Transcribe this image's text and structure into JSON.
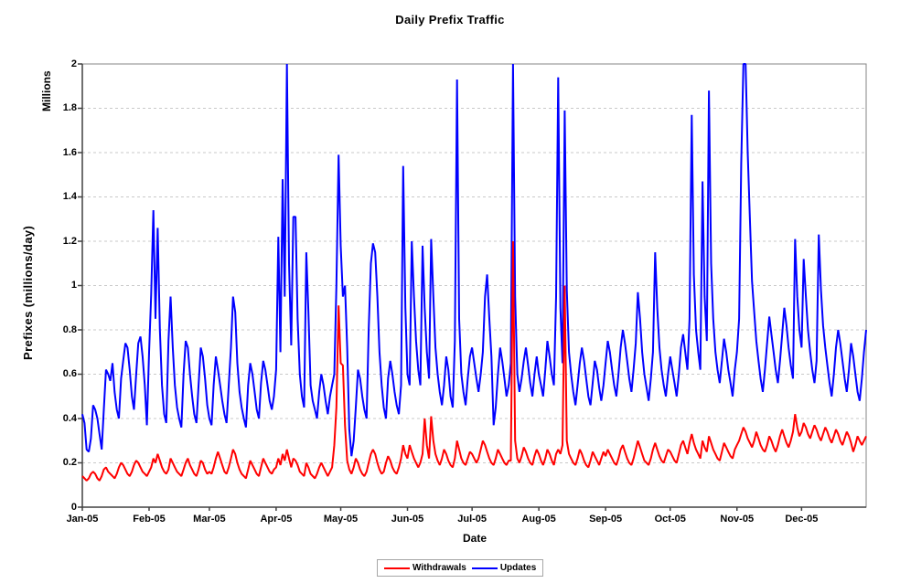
{
  "chart_data": {
    "type": "line",
    "title": "Daily Prefix Traffic",
    "xlabel": "Date",
    "ylabel": "Prefixes (millions/day)",
    "y_unit_label": "Millions",
    "ylim": [
      0,
      2
    ],
    "grid": "horizontal-dashed",
    "legend_position": "bottom-center",
    "y_tick_labels": [
      "2",
      "1.8",
      "1.6",
      "1.4",
      "1.2",
      "1",
      "0.8",
      "0.6",
      "0.4",
      "0.2",
      "0"
    ],
    "y_tick_values": [
      2,
      1.8,
      1.6,
      1.4,
      1.2,
      1,
      0.8,
      0.6,
      0.4,
      0.2,
      0
    ],
    "x_tick_labels": [
      "Jan-05",
      "Feb-05",
      "Mar-05",
      "Apr-05",
      "May-05",
      "Jun-05",
      "Jul-05",
      "Aug-05",
      "Sep-05",
      "Oct-05",
      "Nov-05",
      "Dec-05"
    ],
    "x_tick_days": [
      0,
      31,
      59,
      90,
      120,
      151,
      181,
      212,
      243,
      273,
      304,
      334
    ],
    "days_total": 365,
    "colors": {
      "grid": "#c9c9c9",
      "axis": "#404040",
      "plot_border": "#848484",
      "text": "#000000",
      "legend_border": "#a6a6a6"
    },
    "series": [
      {
        "name": "Withdrawals",
        "color": "#ff0000",
        "values": [
          0.14,
          0.13,
          0.12,
          0.13,
          0.15,
          0.16,
          0.15,
          0.13,
          0.12,
          0.14,
          0.17,
          0.18,
          0.16,
          0.15,
          0.14,
          0.13,
          0.15,
          0.18,
          0.2,
          0.19,
          0.17,
          0.15,
          0.14,
          0.16,
          0.19,
          0.21,
          0.2,
          0.18,
          0.16,
          0.15,
          0.14,
          0.16,
          0.18,
          0.22,
          0.2,
          0.24,
          0.21,
          0.18,
          0.16,
          0.15,
          0.17,
          0.22,
          0.2,
          0.18,
          0.16,
          0.15,
          0.14,
          0.17,
          0.2,
          0.22,
          0.19,
          0.17,
          0.15,
          0.14,
          0.17,
          0.21,
          0.2,
          0.17,
          0.15,
          0.16,
          0.15,
          0.18,
          0.22,
          0.25,
          0.22,
          0.19,
          0.16,
          0.15,
          0.18,
          0.22,
          0.26,
          0.24,
          0.2,
          0.17,
          0.15,
          0.14,
          0.13,
          0.17,
          0.21,
          0.19,
          0.17,
          0.15,
          0.14,
          0.18,
          0.22,
          0.2,
          0.18,
          0.16,
          0.15,
          0.17,
          0.18,
          0.22,
          0.19,
          0.24,
          0.21,
          0.26,
          0.22,
          0.18,
          0.22,
          0.21,
          0.19,
          0.16,
          0.15,
          0.14,
          0.2,
          0.18,
          0.15,
          0.14,
          0.13,
          0.15,
          0.18,
          0.2,
          0.18,
          0.16,
          0.14,
          0.16,
          0.18,
          0.28,
          0.45,
          0.91,
          0.65,
          0.64,
          0.37,
          0.21,
          0.17,
          0.15,
          0.18,
          0.22,
          0.2,
          0.17,
          0.15,
          0.14,
          0.16,
          0.2,
          0.24,
          0.26,
          0.24,
          0.2,
          0.17,
          0.15,
          0.16,
          0.2,
          0.23,
          0.21,
          0.18,
          0.16,
          0.15,
          0.18,
          0.22,
          0.28,
          0.24,
          0.22,
          0.28,
          0.25,
          0.22,
          0.2,
          0.18,
          0.2,
          0.24,
          0.4,
          0.28,
          0.22,
          0.41,
          0.3,
          0.24,
          0.21,
          0.19,
          0.22,
          0.26,
          0.24,
          0.21,
          0.19,
          0.18,
          0.22,
          0.3,
          0.26,
          0.22,
          0.2,
          0.19,
          0.22,
          0.25,
          0.24,
          0.22,
          0.2,
          0.22,
          0.26,
          0.3,
          0.28,
          0.25,
          0.22,
          0.2,
          0.19,
          0.22,
          0.26,
          0.24,
          0.22,
          0.2,
          0.19,
          0.21,
          0.21,
          1.2,
          0.3,
          0.22,
          0.2,
          0.23,
          0.27,
          0.25,
          0.22,
          0.2,
          0.19,
          0.23,
          0.26,
          0.24,
          0.21,
          0.19,
          0.22,
          0.26,
          0.24,
          0.21,
          0.19,
          0.24,
          0.26,
          0.24,
          0.28,
          1.0,
          0.3,
          0.24,
          0.22,
          0.2,
          0.19,
          0.22,
          0.26,
          0.24,
          0.21,
          0.19,
          0.18,
          0.21,
          0.25,
          0.23,
          0.21,
          0.19,
          0.22,
          0.25,
          0.23,
          0.26,
          0.24,
          0.22,
          0.2,
          0.19,
          0.22,
          0.26,
          0.28,
          0.25,
          0.22,
          0.2,
          0.19,
          0.22,
          0.26,
          0.3,
          0.27,
          0.24,
          0.21,
          0.2,
          0.19,
          0.22,
          0.26,
          0.29,
          0.26,
          0.23,
          0.21,
          0.2,
          0.23,
          0.26,
          0.25,
          0.23,
          0.21,
          0.2,
          0.24,
          0.28,
          0.3,
          0.27,
          0.24,
          0.29,
          0.33,
          0.29,
          0.26,
          0.24,
          0.22,
          0.3,
          0.27,
          0.25,
          0.32,
          0.29,
          0.26,
          0.24,
          0.22,
          0.21,
          0.25,
          0.29,
          0.27,
          0.25,
          0.23,
          0.22,
          0.26,
          0.28,
          0.3,
          0.33,
          0.36,
          0.34,
          0.31,
          0.29,
          0.27,
          0.3,
          0.34,
          0.31,
          0.28,
          0.26,
          0.25,
          0.28,
          0.32,
          0.3,
          0.27,
          0.25,
          0.28,
          0.32,
          0.35,
          0.32,
          0.29,
          0.27,
          0.3,
          0.34,
          0.42,
          0.36,
          0.32,
          0.34,
          0.38,
          0.36,
          0.33,
          0.31,
          0.34,
          0.37,
          0.35,
          0.32,
          0.3,
          0.33,
          0.36,
          0.34,
          0.31,
          0.29,
          0.32,
          0.35,
          0.33,
          0.3,
          0.28,
          0.31,
          0.34,
          0.32,
          0.29,
          0.25,
          0.28,
          0.32,
          0.3,
          0.28,
          0.3,
          0.32
        ]
      },
      {
        "name": "Updates",
        "color": "#0000ff",
        "values": [
          0.42,
          0.38,
          0.26,
          0.25,
          0.31,
          0.46,
          0.44,
          0.4,
          0.33,
          0.26,
          0.44,
          0.62,
          0.6,
          0.57,
          0.65,
          0.52,
          0.44,
          0.4,
          0.58,
          0.66,
          0.74,
          0.72,
          0.62,
          0.5,
          0.44,
          0.6,
          0.74,
          0.77,
          0.68,
          0.55,
          0.37,
          0.7,
          0.96,
          1.34,
          0.85,
          1.26,
          0.8,
          0.55,
          0.42,
          0.38,
          0.75,
          0.95,
          0.72,
          0.55,
          0.45,
          0.4,
          0.36,
          0.6,
          0.75,
          0.72,
          0.6,
          0.5,
          0.42,
          0.38,
          0.55,
          0.72,
          0.68,
          0.58,
          0.46,
          0.4,
          0.37,
          0.55,
          0.68,
          0.62,
          0.55,
          0.48,
          0.42,
          0.38,
          0.55,
          0.72,
          0.95,
          0.88,
          0.65,
          0.52,
          0.45,
          0.4,
          0.36,
          0.55,
          0.65,
          0.6,
          0.52,
          0.44,
          0.4,
          0.56,
          0.66,
          0.62,
          0.55,
          0.48,
          0.44,
          0.5,
          0.62,
          1.22,
          0.7,
          1.48,
          0.95,
          2.0,
          1.1,
          0.73,
          1.31,
          1.31,
          0.85,
          0.6,
          0.5,
          0.45,
          1.15,
          0.88,
          0.55,
          0.48,
          0.44,
          0.4,
          0.52,
          0.6,
          0.55,
          0.48,
          0.42,
          0.5,
          0.55,
          0.6,
          1.0,
          1.59,
          1.18,
          0.95,
          1.0,
          0.72,
          0.35,
          0.23,
          0.3,
          0.45,
          0.62,
          0.58,
          0.5,
          0.44,
          0.4,
          0.8,
          1.1,
          1.19,
          1.15,
          0.95,
          0.7,
          0.55,
          0.45,
          0.4,
          0.58,
          0.66,
          0.6,
          0.52,
          0.46,
          0.42,
          0.55,
          1.54,
          0.9,
          0.6,
          0.55,
          1.2,
          0.95,
          0.75,
          0.62,
          0.55,
          1.18,
          0.9,
          0.7,
          0.58,
          1.21,
          0.95,
          0.72,
          0.6,
          0.52,
          0.46,
          0.55,
          0.68,
          0.62,
          0.5,
          0.45,
          0.75,
          1.93,
          0.85,
          0.6,
          0.52,
          0.46,
          0.58,
          0.68,
          0.72,
          0.65,
          0.58,
          0.52,
          0.6,
          0.7,
          0.95,
          1.05,
          0.85,
          0.68,
          0.37,
          0.45,
          0.6,
          0.72,
          0.66,
          0.58,
          0.5,
          0.55,
          0.65,
          2.0,
          0.95,
          0.6,
          0.52,
          0.58,
          0.66,
          0.72,
          0.64,
          0.56,
          0.5,
          0.6,
          0.68,
          0.6,
          0.55,
          0.5,
          0.62,
          0.75,
          0.68,
          0.6,
          0.55,
          0.95,
          1.94,
          0.9,
          0.65,
          1.79,
          0.98,
          0.7,
          0.6,
          0.52,
          0.46,
          0.55,
          0.65,
          0.72,
          0.66,
          0.58,
          0.5,
          0.46,
          0.56,
          0.66,
          0.62,
          0.54,
          0.48,
          0.55,
          0.65,
          0.75,
          0.7,
          0.62,
          0.55,
          0.5,
          0.6,
          0.72,
          0.8,
          0.74,
          0.66,
          0.58,
          0.52,
          0.62,
          0.74,
          0.97,
          0.85,
          0.7,
          0.6,
          0.54,
          0.48,
          0.58,
          0.7,
          1.15,
          0.9,
          0.72,
          0.62,
          0.55,
          0.5,
          0.6,
          0.68,
          0.62,
          0.56,
          0.5,
          0.6,
          0.72,
          0.78,
          0.7,
          0.62,
          0.85,
          1.77,
          1.05,
          0.8,
          0.7,
          0.62,
          1.47,
          0.95,
          0.75,
          1.88,
          1.1,
          0.85,
          0.7,
          0.62,
          0.56,
          0.66,
          0.76,
          0.7,
          0.62,
          0.56,
          0.5,
          0.62,
          0.7,
          0.85,
          1.55,
          2.0,
          2.0,
          1.6,
          1.3,
          1.02,
          0.88,
          0.75,
          0.66,
          0.58,
          0.52,
          0.62,
          0.74,
          0.86,
          0.78,
          0.7,
          0.62,
          0.56,
          0.66,
          0.78,
          0.9,
          0.82,
          0.72,
          0.64,
          0.58,
          1.21,
          0.95,
          0.8,
          0.72,
          1.12,
          0.95,
          0.8,
          0.7,
          0.62,
          0.56,
          0.66,
          1.23,
          0.98,
          0.82,
          0.72,
          0.64,
          0.56,
          0.5,
          0.6,
          0.72,
          0.8,
          0.74,
          0.66,
          0.58,
          0.52,
          0.62,
          0.74,
          0.68,
          0.6,
          0.52,
          0.48,
          0.58,
          0.7,
          0.8
        ]
      }
    ]
  }
}
